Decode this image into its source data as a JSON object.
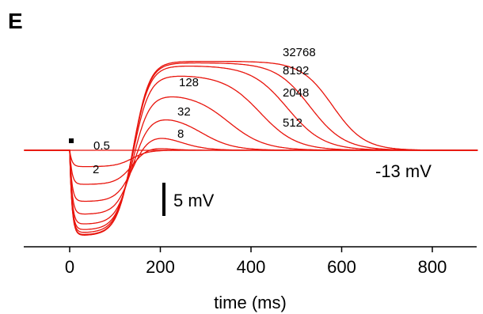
{
  "panel_label": "E",
  "colors": {
    "trace": "#e8140c",
    "axis": "#000000"
  },
  "chart_data": {
    "type": "line",
    "title": "",
    "xlabel": "time (ms)",
    "ylabel": "",
    "xlim": [
      -100,
      900
    ],
    "x_ticks": [
      0,
      200,
      400,
      600,
      800
    ],
    "x_tick_labels": [
      "0",
      "200",
      "400",
      "600",
      "800"
    ],
    "baseline_label": "-13 mV",
    "scale_bar": {
      "label": "5 mV",
      "value_mV": 5
    },
    "stimulus_marker": {
      "x": 0
    },
    "grid": false,
    "legend": "none",
    "series_labels": [
      "0.5",
      "2",
      "8",
      "32",
      "128",
      "512",
      "2048",
      "8192",
      "32768"
    ],
    "series": [
      {
        "values_from": "model",
        "x_end_ms": 900,
        "baseline_mV": 0,
        "dip_mV": -2.3,
        "peak_mV": 0.3,
        "decay_center_ms": 140,
        "decay_width_ms": 20
      },
      {
        "values_from": "model",
        "x_end_ms": 900,
        "baseline_mV": 0,
        "dip_mV": -4.8,
        "peak_mV": 1.0,
        "decay_center_ms": 190,
        "decay_width_ms": 25
      },
      {
        "values_from": "model",
        "x_end_ms": 900,
        "baseline_mV": 0,
        "dip_mV": -7.2,
        "peak_mV": 2.5,
        "decay_center_ms": 240,
        "decay_width_ms": 30
      },
      {
        "values_from": "model",
        "x_end_ms": 900,
        "baseline_mV": 0,
        "dip_mV": -9.0,
        "peak_mV": 5.0,
        "decay_center_ms": 290,
        "decay_width_ms": 35
      },
      {
        "values_from": "model",
        "x_end_ms": 900,
        "baseline_mV": 0,
        "dip_mV": -10.4,
        "peak_mV": 8.0,
        "decay_center_ms": 350,
        "decay_width_ms": 40
      },
      {
        "values_from": "model",
        "x_end_ms": 900,
        "baseline_mV": 0,
        "dip_mV": -11.2,
        "peak_mV": 10.6,
        "decay_center_ms": 420,
        "decay_width_ms": 40
      },
      {
        "values_from": "model",
        "x_end_ms": 900,
        "baseline_mV": 0,
        "dip_mV": -11.6,
        "peak_mV": 11.9,
        "decay_center_ms": 480,
        "decay_width_ms": 40
      },
      {
        "values_from": "model",
        "x_end_ms": 900,
        "baseline_mV": 0,
        "dip_mV": -11.9,
        "peak_mV": 12.3,
        "decay_center_ms": 530,
        "decay_width_ms": 38
      },
      {
        "values_from": "model",
        "x_end_ms": 900,
        "baseline_mV": 0,
        "dip_mV": -12.0,
        "peak_mV": 12.5,
        "decay_center_ms": 580,
        "decay_width_ms": 35
      }
    ]
  }
}
